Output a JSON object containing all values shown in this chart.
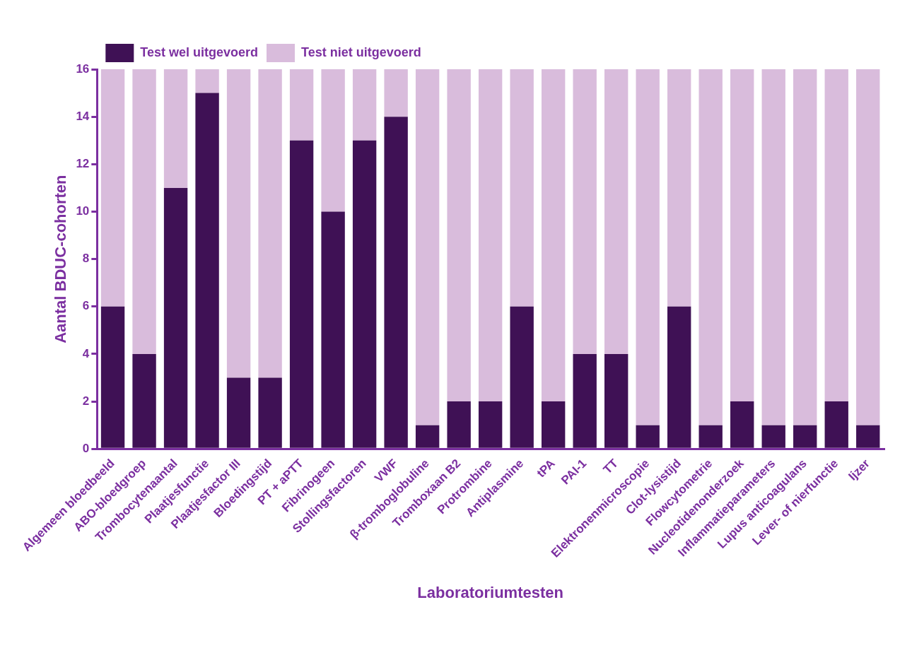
{
  "chart_data": {
    "type": "bar",
    "stacked": true,
    "xlabel": "Laboratoriumtesten",
    "ylabel": "Aantal BDUC-cohorten",
    "categories": [
      "Algemeen bloedbeeld",
      "ABO-bloedgroep",
      "Trombocytenaantal",
      "Plaatjesfunctie",
      "Plaatjesfactor III",
      "Bloedingstijd",
      "PT + aPTT",
      "Fibrinogeen",
      "Stollingsfactoren",
      "VWF",
      "β-tromboglobuline",
      "Tromboxaan B2",
      "Protrombine",
      "Antiplasmine",
      "tPA",
      "PAI-1",
      "TT",
      "Elektronenmicroscopie",
      "Clot-lysistijd",
      "Flowcytometrie",
      "Nucleotidenonderzoek",
      "Inflammatieparameters",
      "Lupus anticoagulans",
      "Lever- of nierfunctie",
      "Ijzer"
    ],
    "series": [
      {
        "name": "Test wel uitgevoerd",
        "color": "#3f1155",
        "values": [
          6,
          4,
          11,
          15,
          3,
          3,
          13,
          10,
          13,
          14,
          1,
          2,
          2,
          6,
          2,
          4,
          4,
          1,
          6,
          1,
          2,
          1,
          1,
          2,
          1
        ]
      },
      {
        "name": "Test niet uitgevoerd",
        "color": "#d9bcdc",
        "values": [
          10,
          12,
          5,
          1,
          13,
          13,
          3,
          6,
          3,
          2,
          15,
          14,
          14,
          10,
          14,
          12,
          12,
          15,
          10,
          15,
          14,
          15,
          15,
          14,
          15
        ]
      }
    ],
    "ylim": [
      0,
      16
    ],
    "yticks": [
      0,
      2,
      4,
      6,
      8,
      10,
      12,
      14,
      16
    ],
    "grid": false,
    "legend": "top left"
  }
}
